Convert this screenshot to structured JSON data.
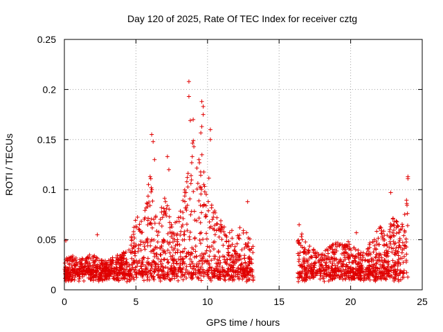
{
  "chart_data": {
    "type": "scatter",
    "title": "Day 120 of 2025, Rate Of TEC Index for receiver cztg",
    "xlabel": "GPS time / hours",
    "ylabel": "ROTI / TECUs",
    "xlim": [
      0,
      25
    ],
    "ylim": [
      0,
      0.25
    ],
    "xticks": [
      0,
      5,
      10,
      15,
      20,
      25
    ],
    "yticks": [
      0,
      0.05,
      0.1,
      0.15,
      0.2,
      0.25
    ],
    "xtick_labels": [
      "0",
      "5",
      "10",
      "15",
      "20",
      "25"
    ],
    "ytick_labels": [
      "0",
      "0.05",
      "0.1",
      "0.15",
      "0.2",
      "0.25"
    ],
    "grid": true,
    "marker": "+",
    "color": "#e00000",
    "gap_hours": [
      13.2,
      16.3
    ],
    "profile": {
      "x": [
        0,
        0.5,
        1,
        1.5,
        2,
        2.5,
        3,
        3.5,
        4,
        4.5,
        5,
        5.5,
        6,
        6.5,
        7,
        7.5,
        8,
        8.5,
        9,
        9.5,
        10,
        10.5,
        11,
        11.5,
        12,
        12.5,
        13,
        13.2,
        16.3,
        16.5,
        17,
        17.5,
        18,
        18.5,
        19,
        19.5,
        20,
        20.5,
        21,
        21.5,
        22,
        22.5,
        23,
        23.5,
        24
      ],
      "envelope": [
        0.03,
        0.035,
        0.03,
        0.035,
        0.035,
        0.03,
        0.03,
        0.035,
        0.035,
        0.045,
        0.08,
        0.07,
        0.12,
        0.06,
        0.1,
        0.07,
        0.08,
        0.11,
        0.15,
        0.16,
        0.12,
        0.08,
        0.07,
        0.06,
        0.06,
        0.07,
        0.06,
        0.05,
        0.05,
        0.06,
        0.045,
        0.04,
        0.04,
        0.045,
        0.05,
        0.045,
        0.05,
        0.04,
        0.04,
        0.05,
        0.065,
        0.055,
        0.08,
        0.06,
        0.1
      ]
    },
    "outliers": [
      {
        "x": 0.1,
        "y": 0.049
      },
      {
        "x": 2.3,
        "y": 0.055
      },
      {
        "x": 6.1,
        "y": 0.155
      },
      {
        "x": 6.2,
        "y": 0.148
      },
      {
        "x": 6.3,
        "y": 0.13
      },
      {
        "x": 7.2,
        "y": 0.133
      },
      {
        "x": 7.3,
        "y": 0.12
      },
      {
        "x": 8.7,
        "y": 0.208
      },
      {
        "x": 8.7,
        "y": 0.193
      },
      {
        "x": 8.8,
        "y": 0.169
      },
      {
        "x": 9.0,
        "y": 0.17
      },
      {
        "x": 9.6,
        "y": 0.188
      },
      {
        "x": 9.7,
        "y": 0.183
      },
      {
        "x": 9.7,
        "y": 0.175
      },
      {
        "x": 9.6,
        "y": 0.163
      },
      {
        "x": 10.2,
        "y": 0.16
      },
      {
        "x": 10.2,
        "y": 0.15
      },
      {
        "x": 9.4,
        "y": 0.13
      },
      {
        "x": 12.8,
        "y": 0.088
      },
      {
        "x": 16.4,
        "y": 0.065
      },
      {
        "x": 22.8,
        "y": 0.097
      },
      {
        "x": 24.0,
        "y": 0.113
      },
      {
        "x": 24.0,
        "y": 0.111
      },
      {
        "x": 20.4,
        "y": 0.057
      }
    ]
  }
}
